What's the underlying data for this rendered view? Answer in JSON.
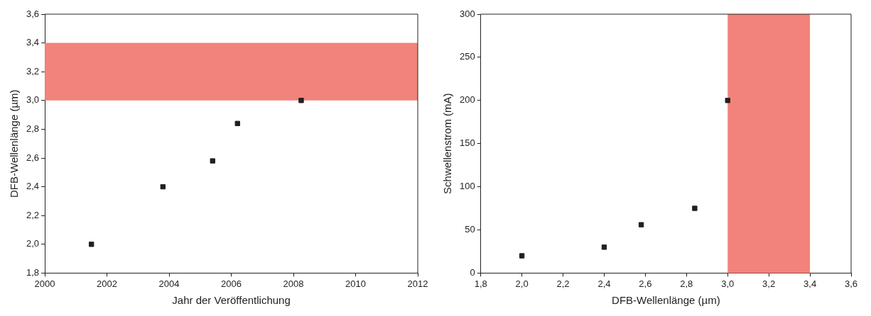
{
  "chart_data": [
    {
      "type": "scatter",
      "xlabel": "Jahr der Veröffentlichung",
      "ylabel": "DFB-Wellenlänge (µm)",
      "marker": "square",
      "grid": false,
      "legend": false,
      "x": [
        2001.5,
        2003.8,
        2005.4,
        2006.2,
        2008.25
      ],
      "series": [
        {
          "color": "#231f20",
          "values": [
            2.0,
            2.4,
            2.58,
            2.84,
            3.0
          ]
        }
      ],
      "xlim": [
        2000,
        2012
      ],
      "xticks": [
        2000,
        2002,
        2004,
        2006,
        2008,
        2010,
        2012
      ],
      "ylim": [
        1.8,
        3.6
      ],
      "yticks": [
        {
          "value": 1.8,
          "label": "1,8"
        },
        {
          "value": 2.0,
          "label": "2,0"
        },
        {
          "value": 2.2,
          "label": "2,2"
        },
        {
          "value": 2.4,
          "label": "2,4"
        },
        {
          "value": 2.6,
          "label": "2,6"
        },
        {
          "value": 2.8,
          "label": "2,8"
        },
        {
          "value": 3.0,
          "label": "3,0"
        },
        {
          "value": 3.2,
          "label": "3,2"
        },
        {
          "value": 3.4,
          "label": "3,4"
        },
        {
          "value": 3.6,
          "label": "3,6"
        }
      ],
      "bands": [
        {
          "axis": "y",
          "from": 3.0,
          "to": 3.4,
          "color": "#f2837a"
        }
      ]
    },
    {
      "type": "scatter",
      "xlabel": "DFB-Wellenlänge (µm)",
      "ylabel": "Schwellenstrom (mA)",
      "marker": "square",
      "grid": false,
      "legend": false,
      "x": [
        2.0,
        2.4,
        2.58,
        2.84,
        3.0
      ],
      "series": [
        {
          "color": "#231f20",
          "values": [
            20,
            30,
            56,
            75,
            200
          ]
        }
      ],
      "xlim": [
        1.8,
        3.6
      ],
      "xticks": [
        {
          "value": 1.8,
          "label": "1,8"
        },
        {
          "value": 2.0,
          "label": "2,0"
        },
        {
          "value": 2.2,
          "label": "2,2"
        },
        {
          "value": 2.4,
          "label": "2,4"
        },
        {
          "value": 2.6,
          "label": "2,6"
        },
        {
          "value": 2.8,
          "label": "2,8"
        },
        {
          "value": 3.0,
          "label": "3,0"
        },
        {
          "value": 3.2,
          "label": "3,2"
        },
        {
          "value": 3.4,
          "label": "3,4"
        },
        {
          "value": 3.6,
          "label": "3,6"
        }
      ],
      "ylim": [
        0,
        300
      ],
      "yticks": [
        0,
        50,
        100,
        150,
        200,
        250,
        300
      ],
      "bands": [
        {
          "axis": "x",
          "from": 3.0,
          "to": 3.4,
          "color": "#f2837a"
        }
      ]
    }
  ]
}
